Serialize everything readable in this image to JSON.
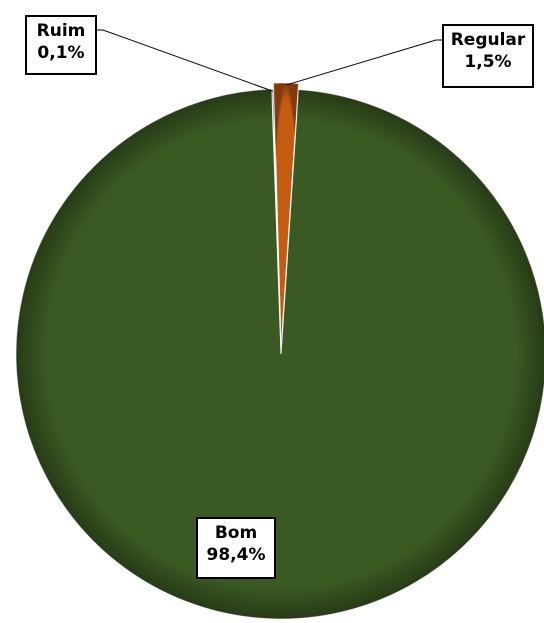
{
  "chart_data": {
    "type": "pie",
    "title": "",
    "categories": [
      "Ruim",
      "Regular",
      "Bom"
    ],
    "values": [
      0.1,
      1.5,
      98.4
    ],
    "value_labels": [
      "0,1%",
      "1,5%",
      "98,4%"
    ],
    "colors": [
      "#e6e6e6",
      "#c55a11",
      "#3b5a23"
    ],
    "legend": "none",
    "data_labels": "callout-boxes"
  }
}
